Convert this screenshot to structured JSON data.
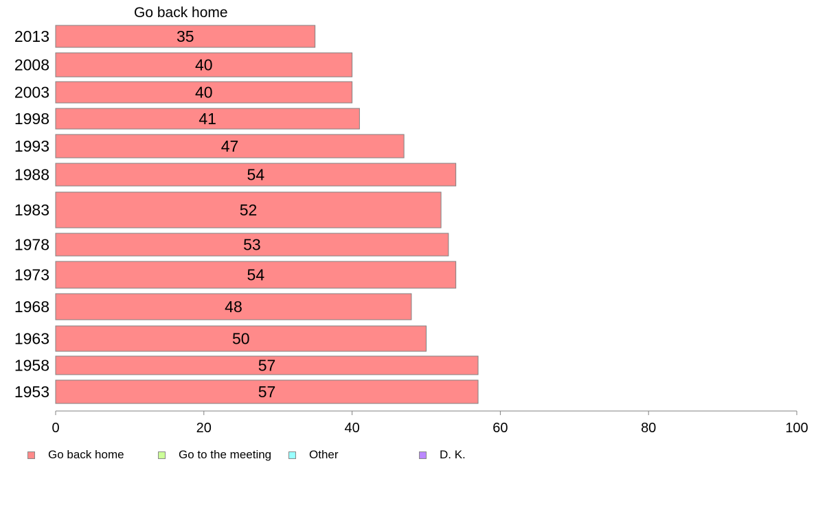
{
  "chart_data": {
    "type": "bar",
    "orientation": "horizontal",
    "title": "Go back home",
    "xlabel": "",
    "ylabel": "",
    "xlim": [
      0,
      100
    ],
    "xticks": [
      0,
      20,
      40,
      60,
      80,
      100
    ],
    "categories": [
      "2013",
      "2008",
      "2003",
      "1998",
      "1993",
      "1988",
      "1983",
      "1978",
      "1973",
      "1968",
      "1963",
      "1958",
      "1953"
    ],
    "series": [
      {
        "name": "Go back home",
        "color": "#ff8a8a",
        "values": [
          35,
          40,
          40,
          41,
          47,
          54,
          52,
          53,
          54,
          48,
          50,
          57,
          57
        ],
        "labels": [
          "35",
          "40",
          "40",
          "41",
          "47",
          "54",
          "52",
          "53",
          "54",
          "48",
          "50",
          "57",
          "57"
        ]
      }
    ],
    "legend": {
      "placement": "bottom-left",
      "entries": [
        {
          "label": "Go back home",
          "color": "#ff8a8a"
        },
        {
          "label": "Go to the meeting",
          "color": "#ccff99"
        },
        {
          "label": "Other",
          "color": "#99ffff"
        },
        {
          "label": "D. K.",
          "color": "#bb88ff"
        }
      ]
    },
    "grid": false
  }
}
